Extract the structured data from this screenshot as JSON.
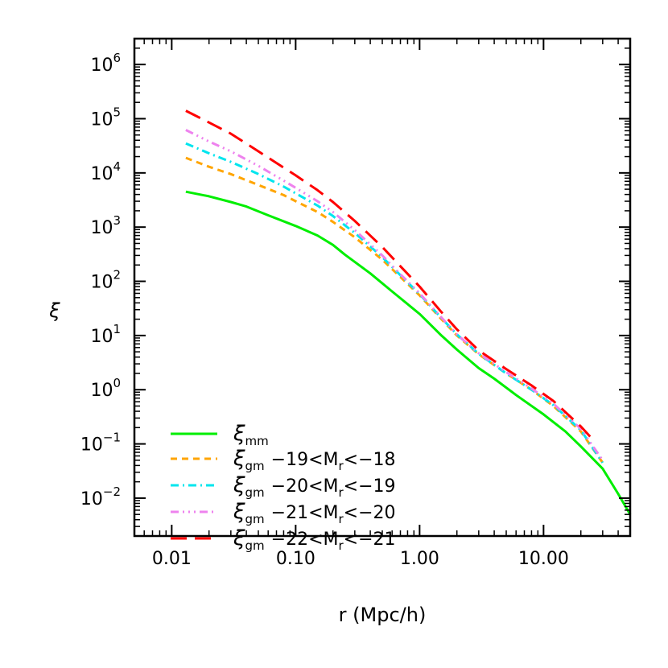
{
  "chart_data": {
    "type": "line",
    "xlabel": "r (Mpc/h)",
    "ylabel": "ξ",
    "x_scale": "log",
    "y_scale": "log",
    "xlim": [
      0.005,
      50
    ],
    "ylim": [
      0.002,
      3000000
    ],
    "x_ticks": [
      0.01,
      0.1,
      1,
      10
    ],
    "x_tick_labels": [
      "0.01",
      "0.10",
      "1.00",
      "10.00"
    ],
    "y_ticks": [
      0.01,
      0.1,
      1,
      10,
      100,
      1000,
      10000,
      100000,
      1000000
    ],
    "y_tick_mantissa": "10",
    "y_tick_exponents": [
      "−2",
      "−1",
      "0",
      "1",
      "2",
      "3",
      "4",
      "5",
      "6"
    ],
    "grid": false,
    "legend_position": "bottom-left",
    "series": [
      {
        "name": "ξmm",
        "legend_main": "ξ",
        "legend_sub": "mm",
        "legend_range": "",
        "color": "#00ee00",
        "dash": "solid",
        "x": [
          0.013,
          0.02,
          0.03,
          0.04,
          0.06,
          0.1,
          0.15,
          0.2,
          0.25,
          0.4,
          0.6,
          1.0,
          1.5,
          2.0,
          3.0,
          4.0,
          6.0,
          10.0,
          15.0,
          20.0,
          30.0,
          40.0,
          50.0
        ],
        "y": [
          4500,
          3700,
          2900,
          2400,
          1650,
          1050,
          700,
          470,
          310,
          140,
          65,
          25,
          10,
          5.5,
          2.5,
          1.6,
          0.8,
          0.35,
          0.17,
          0.09,
          0.035,
          0.012,
          0.005
        ]
      },
      {
        "name": "ξgm −19<Mr<−18",
        "legend_main": "ξ",
        "legend_sub": "gm",
        "legend_range": "−19<M",
        "legend_range_sub": "r",
        "legend_range_end": "<−18",
        "color": "#ffa500",
        "dash": "8,6",
        "x": [
          0.013,
          0.02,
          0.03,
          0.05,
          0.08,
          0.1,
          0.15,
          0.2,
          0.3,
          0.5,
          0.7,
          1.0,
          1.5,
          2.0,
          3.0,
          5.0,
          8.0,
          12.0,
          20.0,
          30.0
        ],
        "y": [
          19000,
          13000,
          9500,
          6000,
          3900,
          3000,
          1900,
          1250,
          650,
          250,
          120,
          55,
          20,
          10,
          4.5,
          2.0,
          1.0,
          0.5,
          0.17,
          0.045
        ]
      },
      {
        "name": "ξgm −20<Mr<−19",
        "legend_main": "ξ",
        "legend_sub": "gm",
        "legend_range": "−20<M",
        "legend_range_sub": "r",
        "legend_range_end": "<−19",
        "color": "#00e5ee",
        "dash": "10,5,2,5",
        "x": [
          0.013,
          0.02,
          0.03,
          0.05,
          0.08,
          0.1,
          0.15,
          0.2,
          0.3,
          0.5,
          0.7,
          1.0,
          1.5,
          2.0,
          3.0,
          5.0,
          8.0,
          12.0,
          20.0,
          30.0
        ],
        "y": [
          35000,
          23000,
          16000,
          9500,
          5600,
          4200,
          2500,
          1600,
          780,
          280,
          130,
          58,
          21,
          10.5,
          4.6,
          2.0,
          1.0,
          0.52,
          0.18,
          0.045
        ]
      },
      {
        "name": "ξgm −21<Mr<−20",
        "legend_main": "ξ",
        "legend_sub": "gm",
        "legend_range": "−21<M",
        "legend_range_sub": "r",
        "legend_range_end": "<−20",
        "color": "#ee82ee",
        "dash": "10,5,2,5,2,5,2,5",
        "x": [
          0.013,
          0.02,
          0.03,
          0.05,
          0.08,
          0.1,
          0.15,
          0.2,
          0.3,
          0.5,
          0.7,
          1.0,
          1.5,
          2.0,
          3.0,
          5.0,
          8.0,
          12.0,
          20.0,
          30.0
        ],
        "y": [
          62000,
          38000,
          25000,
          13500,
          7200,
          5300,
          3000,
          1900,
          880,
          300,
          135,
          60,
          21.5,
          10.5,
          4.7,
          2.1,
          1.05,
          0.55,
          0.19,
          0.05
        ]
      },
      {
        "name": "ξgm −22<Mr<−21",
        "legend_main": "ξ",
        "legend_sub": "gm",
        "legend_range": "−22<M",
        "legend_range_sub": "r",
        "legend_range_end": "<−21",
        "color": "#ff0000",
        "dash": "20,10",
        "x": [
          0.013,
          0.02,
          0.03,
          0.05,
          0.08,
          0.1,
          0.15,
          0.2,
          0.3,
          0.5,
          0.7,
          1.0,
          1.5,
          2.0,
          3.0,
          5.0,
          8.0,
          12.0,
          20.0,
          25.0
        ],
        "y": [
          140000,
          85000,
          53000,
          25000,
          12500,
          9000,
          4800,
          2900,
          1300,
          430,
          190,
          80,
          27,
          13,
          5.3,
          2.4,
          1.2,
          0.62,
          0.21,
          0.12
        ]
      }
    ]
  }
}
